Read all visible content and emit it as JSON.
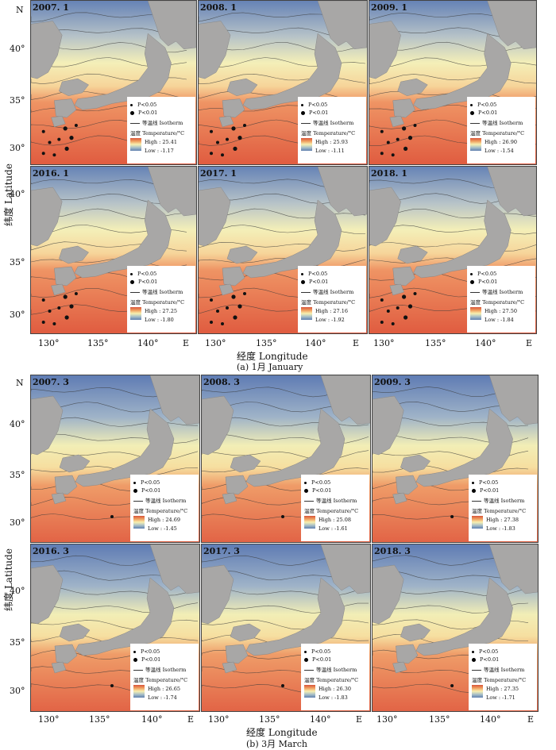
{
  "axis_labels": {
    "north": "N",
    "east": "E",
    "latitude": "纬度 Latitude",
    "longitude": "经度 Longitude",
    "lat_ticks": [
      "40°",
      "35°",
      "30°"
    ],
    "lon_ticks": [
      "130°",
      "135°",
      "140°"
    ]
  },
  "legend": {
    "p05": "P<0.05",
    "p01": "P<0.01",
    "isotherm": "等温线 Isotherm",
    "temp_label": "温度 Temperature/°C"
  },
  "captions": {
    "jan": "(a) 1月 January",
    "mar": "(b) 3月 March"
  },
  "panels": [
    {
      "label": "2007. 1",
      "high": "High : 25.41",
      "low": "Low : -1.17"
    },
    {
      "label": "2008. 1",
      "high": "High : 25.93",
      "low": "Low : -1.11"
    },
    {
      "label": "2009. 1",
      "high": "High : 26.90",
      "low": "Low : -1.54"
    },
    {
      "label": "2016. 1",
      "high": "High : 27.25",
      "low": "Low : -1.80"
    },
    {
      "label": "2017. 1",
      "high": "High : 27.16",
      "low": "Low : -1.92"
    },
    {
      "label": "2018. 1",
      "high": "High : 27.50",
      "low": "Low : -1.84"
    },
    {
      "label": "2007. 3",
      "high": "High : 24.69",
      "low": "Low : -1.45"
    },
    {
      "label": "2008. 3",
      "high": "High : 25.08",
      "low": "Low : -1.61"
    },
    {
      "label": "2009. 3",
      "high": "High : 27.38",
      "low": "Low : -1.83"
    },
    {
      "label": "2016. 3",
      "high": "High : 26.65",
      "low": "Low : -1.74"
    },
    {
      "label": "2017. 3",
      "high": "High : 26.30",
      "low": "Low : -1.83"
    },
    {
      "label": "2018. 3",
      "high": "High : 27.35",
      "low": "Low : -1.71"
    }
  ],
  "colors": {
    "warm": "#e06a45",
    "mid": "#f6ecb0",
    "cool": "#6a86b8",
    "land": "#a8a7a6"
  }
}
